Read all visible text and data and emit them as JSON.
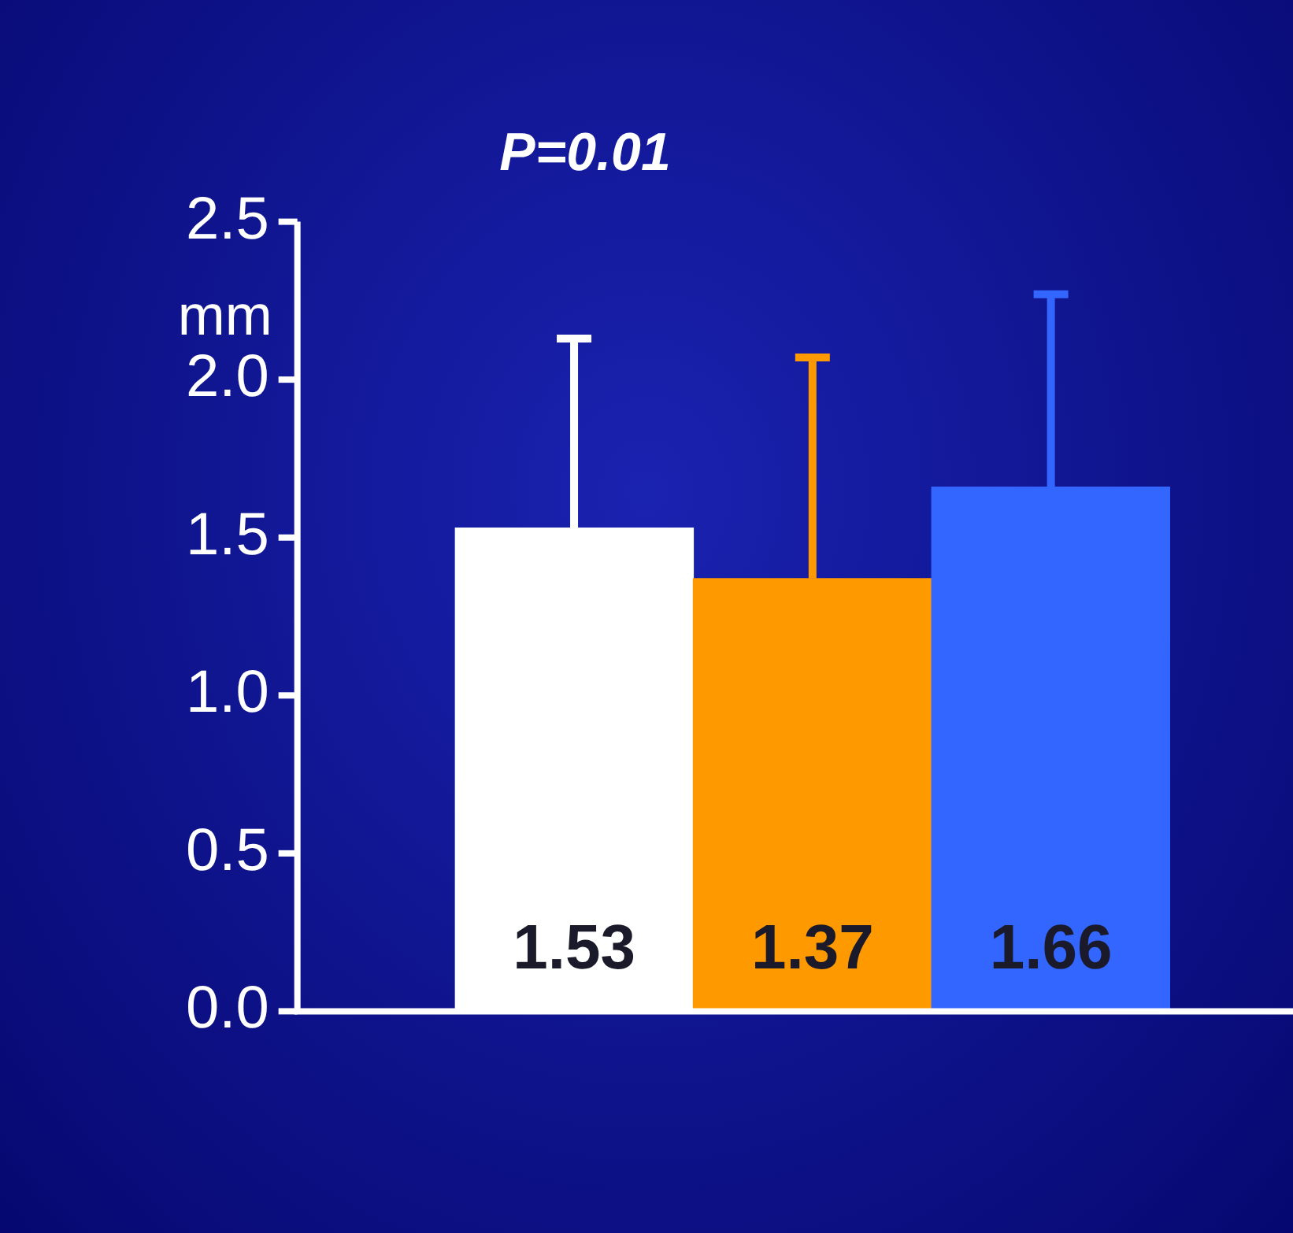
{
  "chart_data": {
    "type": "bar",
    "title": "P=0.01",
    "ylabel": "mm",
    "categories": [
      null,
      null,
      null
    ],
    "values": [
      1.53,
      1.37,
      1.66
    ],
    "colors": [
      "#ffffff",
      "#ff9900",
      "#3366ff"
    ],
    "errors": [
      [
        1.53,
        2.13
      ],
      [
        1.37,
        2.07
      ],
      [
        1.66,
        2.27
      ]
    ],
    "ylim": [
      0,
      2.5
    ],
    "yticks": [
      {
        "value": 0,
        "label": "0.0"
      },
      {
        "value": 0.5,
        "label": "0.5"
      },
      {
        "value": 1,
        "label": "1.0"
      },
      {
        "value": 1.5,
        "label": "1.5"
      },
      {
        "value": 2,
        "label": "2.0"
      },
      {
        "value": 2.5,
        "label": "2.5"
      }
    ],
    "grid": false,
    "legend": false,
    "data_labels": true
  }
}
